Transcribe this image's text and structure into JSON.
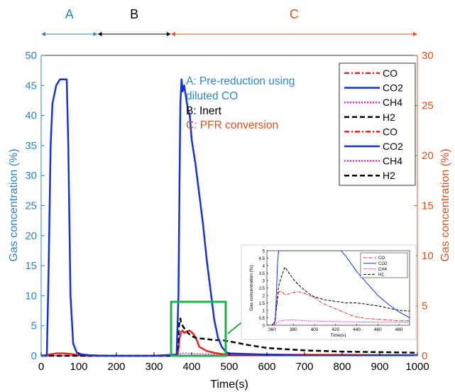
{
  "chart_data": {
    "type": "line",
    "xlabel": "Time(s)",
    "ylabel_left": "Gas concentration (%)",
    "ylabel_right": "Gas concentration (%)",
    "xlim": [
      0,
      1000
    ],
    "ylim_left": [
      0,
      50
    ],
    "ylim_right": [
      0,
      30
    ],
    "xticks": [
      0,
      100,
      200,
      300,
      400,
      500,
      600,
      700,
      800,
      900,
      1000
    ],
    "yticks_left": [
      0,
      5,
      10,
      15,
      20,
      25,
      30,
      35,
      40,
      45,
      50
    ],
    "yticks_right": [
      0,
      5,
      10,
      15,
      20,
      25,
      30
    ],
    "grid": false,
    "legend_position": "top-right",
    "colors": {
      "left_axis": "#2e86c1",
      "right_axis": "#d9531e",
      "CO": "#e8231a",
      "CO2": "#1432d6",
      "CH4": "#e020e0",
      "H2": "#000000"
    },
    "phases": [
      {
        "label": "A",
        "start": 0,
        "end": 150,
        "color": "#2e86c1"
      },
      {
        "label": "B",
        "start": 150,
        "end": 345,
        "color": "#000000"
      },
      {
        "label": "C",
        "start": 345,
        "end": 1000,
        "color": "#d9531e"
      }
    ],
    "annotations": [
      {
        "text": "A: Pre-reduction using",
        "color": "#2e86c1"
      },
      {
        "text": "diluted CO",
        "color": "#2e86c1"
      },
      {
        "text": "B: Inert",
        "color": "#000000"
      },
      {
        "text": "C: PFR conversion",
        "color": "#d9531e"
      }
    ],
    "legend": [
      {
        "name": "CO",
        "style": "dashdot",
        "color": "#e8231a"
      },
      {
        "name": "CO2",
        "style": "solid",
        "color": "#1432d6"
      },
      {
        "name": "CH4",
        "style": "dotted",
        "color": "#e020e0"
      },
      {
        "name": "H2",
        "style": "dashed",
        "color": "#000000"
      },
      {
        "name": "CO",
        "style": "dashdot",
        "color": "#e8231a"
      },
      {
        "name": "CO2",
        "style": "solid",
        "color": "#1432d6"
      },
      {
        "name": "CH4",
        "style": "dotted",
        "color": "#e020e0"
      },
      {
        "name": "H2",
        "style": "dashed",
        "color": "#000000"
      }
    ],
    "series": [
      {
        "name": "CO2",
        "axis": "left",
        "color": "#1432d6",
        "x": [
          0,
          15,
          20,
          25,
          30,
          40,
          50,
          60,
          68,
          72,
          78,
          85,
          95,
          110,
          130,
          150,
          200,
          300,
          360,
          365,
          368,
          370,
          373,
          376,
          380,
          385,
          390,
          395,
          400,
          410,
          420,
          430,
          440,
          450,
          460,
          470,
          480,
          490,
          495,
          500,
          550,
          600,
          700,
          800,
          900,
          1000
        ],
        "y": [
          0,
          0,
          15,
          35,
          42,
          45,
          46,
          46,
          46,
          35,
          10,
          2,
          0.5,
          0.2,
          0.1,
          0.05,
          0,
          0,
          0.2,
          10,
          30,
          42,
          46,
          44,
          45,
          43,
          41,
          40,
          36,
          32,
          27,
          22,
          16,
          11,
          6,
          3,
          1.5,
          0.7,
          0.5,
          0.4,
          0.3,
          0.2,
          0.1,
          0.1,
          0.1,
          0.1
        ]
      },
      {
        "name": "CO",
        "axis": "left",
        "color": "#e8231a",
        "x": [
          0,
          20,
          40,
          60,
          80,
          100,
          120,
          360,
          364,
          368,
          372,
          376,
          380,
          385,
          390,
          395,
          400,
          405,
          410,
          415,
          420,
          440,
          460,
          480,
          500,
          600,
          1000
        ],
        "y": [
          0,
          0.2,
          0.4,
          0.4,
          0.3,
          0.1,
          0,
          0,
          0.5,
          3,
          4,
          4.2,
          3.8,
          4,
          4.1,
          4.2,
          3.9,
          3.6,
          3.1,
          2.4,
          1.5,
          0.8,
          0.5,
          0.3,
          0.2,
          0.2,
          0.1
        ]
      },
      {
        "name": "H2",
        "axis": "left",
        "color": "#000000",
        "x": [
          0,
          360,
          364,
          366,
          370,
          372,
          376,
          380,
          385,
          390,
          400,
          410,
          420,
          440,
          460,
          480,
          500,
          550,
          600,
          700,
          800,
          900,
          1000
        ],
        "y": [
          0,
          0,
          2,
          5,
          6.2,
          5.5,
          5,
          4.6,
          4.3,
          3.8,
          3.3,
          3,
          2.9,
          2.8,
          2.6,
          2.6,
          2.4,
          1.8,
          1.3,
          0.9,
          0.7,
          0.6,
          0.5
        ]
      },
      {
        "name": "CH4",
        "axis": "left",
        "color": "#e020e0",
        "x": [
          0,
          360,
          365,
          375,
          380,
          390,
          400,
          450,
          500,
          600,
          700,
          800,
          900,
          1000
        ],
        "y": [
          0,
          0,
          0.3,
          0.4,
          0.5,
          0.4,
          0.35,
          0.3,
          0.25,
          0.2,
          0.2,
          0.15,
          0.1,
          0.1
        ]
      }
    ],
    "inset": {
      "xlabel": "Time(s)",
      "ylabel": "Gas concentration (%)",
      "xlim": [
        355,
        490
      ],
      "ylim": [
        0,
        5
      ],
      "xticks": [
        360,
        380,
        400,
        420,
        440,
        460,
        480
      ],
      "yticks": [
        0,
        0.5,
        1,
        1.5,
        2,
        2.5,
        3,
        3.5,
        4,
        4.5,
        5
      ],
      "legend": [
        "CO",
        "CO2",
        "CH4",
        "H2"
      ],
      "series": [
        {
          "name": "CO2",
          "color": "#1432d6",
          "x": [
            360,
            363,
            365,
            366,
            425,
            430,
            440,
            450,
            460,
            470,
            480,
            490
          ],
          "y": [
            0,
            0.3,
            4,
            5,
            5,
            4.6,
            3.6,
            2.8,
            2,
            1.4,
            0.9,
            0.5
          ]
        },
        {
          "name": "CO",
          "color": "#e8231a",
          "x": [
            355,
            362,
            364,
            366,
            368,
            372,
            376,
            380,
            385,
            390,
            395,
            400,
            405,
            410,
            420,
            430,
            440,
            450,
            460,
            470,
            480,
            490
          ],
          "y": [
            0,
            0,
            1,
            2.2,
            2.3,
            2.05,
            2.1,
            2.2,
            2.25,
            2.15,
            2,
            1.85,
            1.6,
            1.4,
            1.1,
            0.8,
            0.55,
            0.45,
            0.4,
            0.35,
            0.3,
            0.3
          ]
        },
        {
          "name": "H2",
          "color": "#000000",
          "x": [
            355,
            362,
            364,
            366,
            368,
            370,
            372,
            375,
            380,
            385,
            390,
            395,
            400,
            410,
            420,
            430,
            440,
            450,
            460,
            470,
            480,
            490
          ],
          "y": [
            0,
            0,
            1.2,
            2.6,
            3.1,
            3.5,
            3.9,
            3.6,
            3.1,
            2.7,
            2.4,
            2.1,
            1.9,
            1.7,
            1.6,
            1.5,
            1.5,
            1.4,
            1.3,
            1.15,
            1,
            0.95
          ]
        },
        {
          "name": "CH4",
          "color": "#e020e0",
          "x": [
            355,
            362,
            365,
            368,
            375,
            380,
            390,
            400,
            420,
            440,
            460,
            480,
            490
          ],
          "y": [
            0,
            0,
            0.2,
            0.3,
            0.35,
            0.35,
            0.3,
            0.28,
            0.25,
            0.22,
            0.2,
            0.2,
            0.2
          ]
        }
      ]
    }
  }
}
